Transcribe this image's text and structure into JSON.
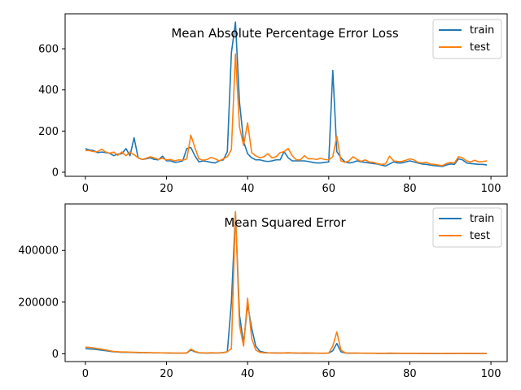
{
  "chart_data": [
    {
      "type": "line",
      "title": "Mean Absolute Percentage Error Loss",
      "xlabel": "",
      "ylabel": "",
      "xlim": [
        -5,
        104
      ],
      "ylim": [
        -20,
        770
      ],
      "xticks": [
        0,
        20,
        40,
        60,
        80,
        100
      ],
      "yticks": [
        0,
        200,
        400,
        600
      ],
      "x_tick_labels": [
        "0",
        "20",
        "40",
        "60",
        "80",
        "100"
      ],
      "y_tick_labels": [
        "0",
        "200",
        "400",
        "600"
      ],
      "legend": {
        "placement": "top-right",
        "entries": [
          "train",
          "test"
        ]
      },
      "grid": false,
      "x": [
        0,
        1,
        2,
        3,
        4,
        5,
        6,
        7,
        8,
        9,
        10,
        11,
        12,
        13,
        14,
        15,
        16,
        17,
        18,
        19,
        20,
        21,
        22,
        23,
        24,
        25,
        26,
        27,
        28,
        29,
        30,
        31,
        32,
        33,
        34,
        35,
        36,
        37,
        38,
        39,
        40,
        41,
        42,
        43,
        44,
        45,
        46,
        47,
        48,
        49,
        50,
        51,
        52,
        53,
        54,
        55,
        56,
        57,
        58,
        59,
        60,
        61,
        62,
        63,
        64,
        65,
        66,
        67,
        68,
        69,
        70,
        71,
        72,
        73,
        74,
        75,
        76,
        77,
        78,
        79,
        80,
        81,
        82,
        83,
        84,
        85,
        86,
        87,
        88,
        89,
        90,
        91,
        92,
        93,
        94,
        95,
        96,
        97,
        98,
        99
      ],
      "series": [
        {
          "name": "train",
          "color": "#1f77b4",
          "values": [
            115,
            108,
            105,
            95,
            98,
            95,
            92,
            80,
            88,
            90,
            115,
            80,
            168,
            70,
            62,
            65,
            70,
            62,
            60,
            78,
            55,
            55,
            48,
            50,
            55,
            115,
            120,
            80,
            50,
            55,
            52,
            48,
            45,
            55,
            60,
            100,
            580,
            730,
            340,
            150,
            90,
            70,
            60,
            60,
            55,
            52,
            55,
            60,
            60,
            100,
            70,
            55,
            55,
            55,
            55,
            52,
            48,
            45,
            45,
            48,
            50,
            495,
            100,
            70,
            50,
            45,
            48,
            55,
            50,
            48,
            45,
            42,
            40,
            35,
            30,
            40,
            50,
            45,
            45,
            50,
            55,
            50,
            45,
            40,
            38,
            35,
            32,
            30,
            28,
            35,
            40,
            38,
            65,
            60,
            45,
            42,
            40,
            38,
            38,
            35
          ]
        },
        {
          "name": "test",
          "color": "#ff7f0e",
          "values": [
            105,
            105,
            100,
            100,
            112,
            98,
            92,
            98,
            82,
            98,
            80,
            98,
            85,
            70,
            62,
            68,
            75,
            70,
            62,
            68,
            60,
            62,
            55,
            60,
            58,
            65,
            180,
            120,
            65,
            58,
            62,
            72,
            65,
            55,
            65,
            75,
            110,
            575,
            220,
            130,
            240,
            95,
            80,
            70,
            75,
            90,
            70,
            75,
            95,
            100,
            115,
            80,
            60,
            60,
            80,
            65,
            65,
            62,
            68,
            62,
            60,
            75,
            175,
            55,
            48,
            55,
            75,
            62,
            52,
            60,
            50,
            48,
            42,
            38,
            40,
            78,
            55,
            52,
            52,
            58,
            65,
            60,
            48,
            45,
            48,
            40,
            38,
            35,
            32,
            42,
            48,
            45,
            75,
            70,
            55,
            50,
            58,
            50,
            52,
            55
          ]
        }
      ]
    },
    {
      "type": "line",
      "title": "Mean Squared Error",
      "xlabel": "",
      "ylabel": "",
      "xlim": [
        -5,
        104
      ],
      "ylim": [
        -30000,
        580000
      ],
      "xticks": [
        0,
        20,
        40,
        60,
        80,
        100
      ],
      "yticks": [
        0,
        200000,
        400000
      ],
      "x_tick_labels": [
        "0",
        "20",
        "40",
        "60",
        "80",
        "100"
      ],
      "y_tick_labels": [
        "0",
        "200000",
        "400000"
      ],
      "legend": {
        "placement": "top-right",
        "entries": [
          "train",
          "test"
        ]
      },
      "grid": false,
      "x": [
        0,
        1,
        2,
        3,
        4,
        5,
        6,
        7,
        8,
        9,
        10,
        11,
        12,
        13,
        14,
        15,
        16,
        17,
        18,
        19,
        20,
        21,
        22,
        23,
        24,
        25,
        26,
        27,
        28,
        29,
        30,
        31,
        32,
        33,
        34,
        35,
        36,
        37,
        38,
        39,
        40,
        41,
        42,
        43,
        44,
        45,
        46,
        47,
        48,
        49,
        50,
        51,
        52,
        53,
        54,
        55,
        56,
        57,
        58,
        59,
        60,
        61,
        62,
        63,
        64,
        65,
        66,
        67,
        68,
        69,
        70,
        71,
        72,
        73,
        74,
        75,
        76,
        77,
        78,
        79,
        80,
        81,
        82,
        83,
        84,
        85,
        86,
        87,
        88,
        89,
        90,
        91,
        92,
        93,
        94,
        95,
        96,
        97,
        98,
        99
      ],
      "series": [
        {
          "name": "train",
          "color": "#1f77b4",
          "values": [
            20000,
            19000,
            18000,
            16000,
            14000,
            12000,
            10000,
            8000,
            7000,
            6000,
            6000,
            5500,
            5000,
            4500,
            4200,
            4000,
            3800,
            3600,
            3500,
            3400,
            3000,
            2800,
            2600,
            2500,
            2500,
            3000,
            15000,
            8000,
            3500,
            3000,
            2800,
            3000,
            3200,
            3500,
            5000,
            8000,
            200000,
            545000,
            150000,
            40000,
            190000,
            100000,
            30000,
            10000,
            6000,
            4000,
            3500,
            3200,
            3000,
            3000,
            3500,
            3000,
            2800,
            2600,
            2500,
            2400,
            2300,
            2200,
            2100,
            2000,
            3000,
            12000,
            40000,
            8000,
            3000,
            2500,
            2400,
            2300,
            2200,
            2100,
            2000,
            1900,
            1800,
            1700,
            1600,
            1800,
            2000,
            1800,
            1700,
            1600,
            1500,
            1500,
            1400,
            1300,
            1200,
            1100,
            1000,
            1000,
            900,
            1200,
            1400,
            1200,
            1600,
            1500,
            1300,
            1200,
            1200,
            1100,
            1100,
            1000
          ]
        },
        {
          "name": "test",
          "color": "#ff7f0e",
          "values": [
            26000,
            25000,
            23000,
            20000,
            18000,
            15000,
            12000,
            9000,
            8000,
            7000,
            7000,
            6500,
            6000,
            5500,
            5000,
            4800,
            4500,
            4200,
            4000,
            3800,
            3500,
            3200,
            3000,
            2800,
            2800,
            4000,
            18000,
            10000,
            4000,
            3500,
            3000,
            4500,
            3500,
            3000,
            4000,
            8000,
            20000,
            550000,
            110000,
            30000,
            215000,
            60000,
            15000,
            6000,
            4000,
            3500,
            3200,
            3000,
            2800,
            3500,
            4500,
            3500,
            3000,
            3000,
            3500,
            3000,
            2800,
            2600,
            2500,
            2500,
            3000,
            30000,
            85000,
            15000,
            4000,
            3000,
            2800,
            2700,
            2600,
            2500,
            2400,
            2300,
            2200,
            2100,
            2000,
            3000,
            2500,
            2300,
            2200,
            2100,
            2000,
            1900,
            1800,
            1700,
            1600,
            1500,
            1400,
            1400,
            1300,
            1500,
            1700,
            1500,
            1800,
            1700,
            1600,
            1500,
            1500,
            1400,
            1400,
            1300
          ]
        }
      ]
    }
  ]
}
